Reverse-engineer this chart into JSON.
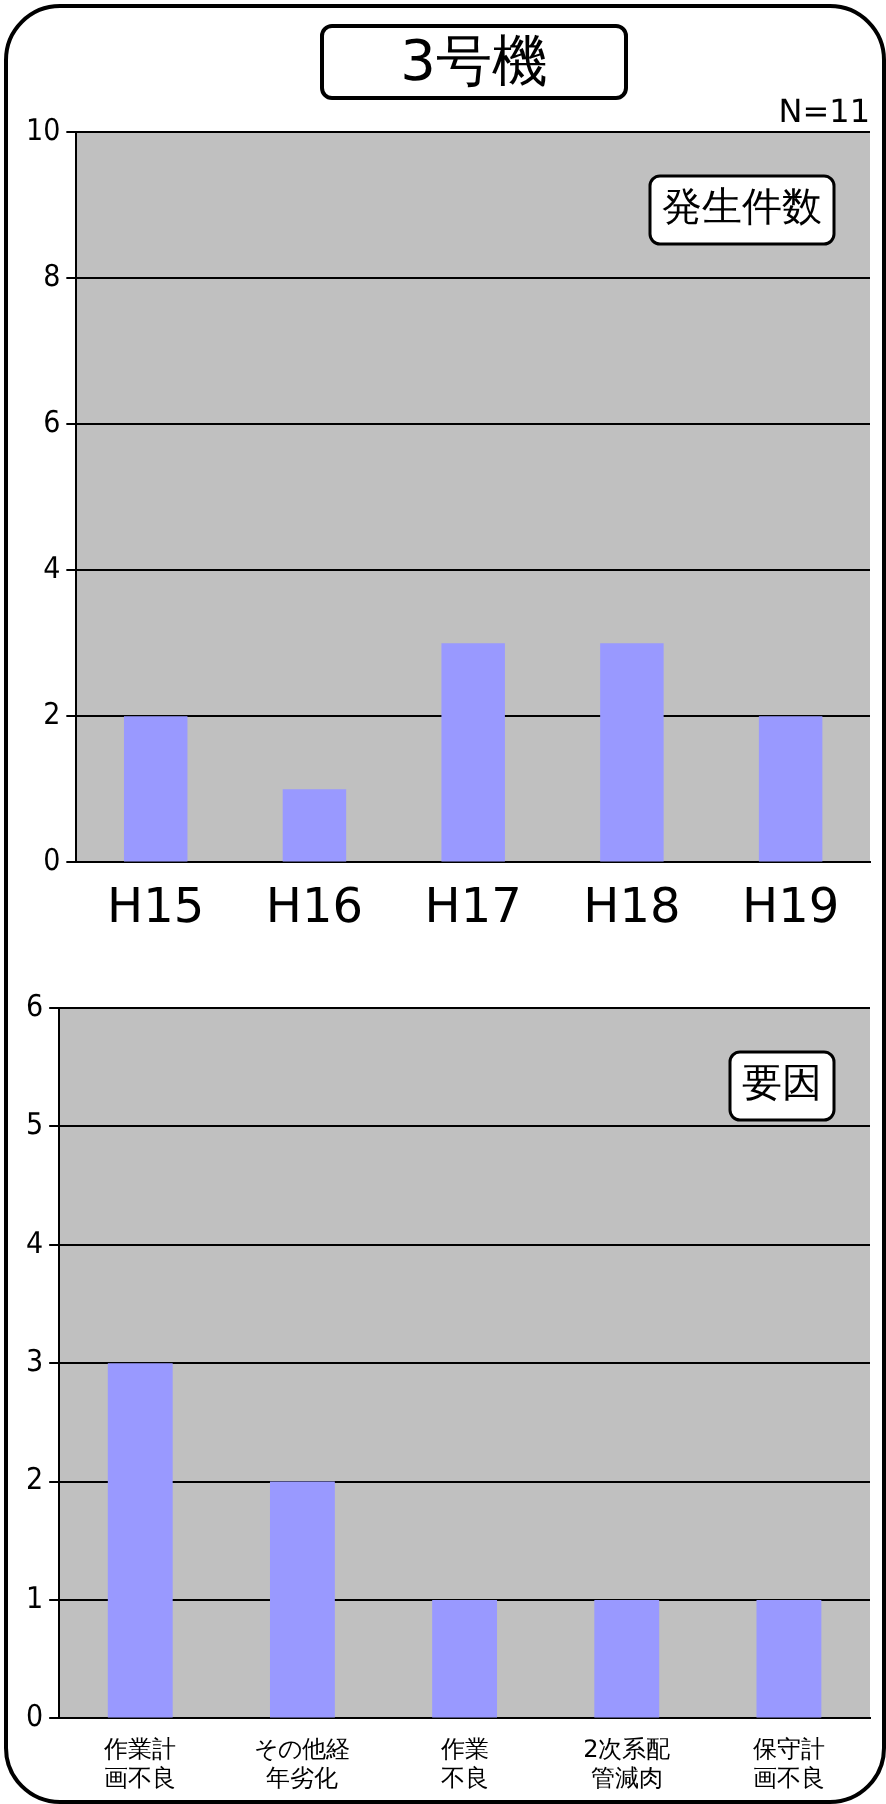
{
  "chart_data": [
    {
      "type": "bar",
      "title": "3号機",
      "categories": [
        "H15",
        "H16",
        "H17",
        "H18",
        "H19"
      ],
      "values": [
        2,
        1,
        3,
        3,
        2
      ],
      "color": "#9999ff",
      "ylim": [
        0,
        10
      ],
      "yticks": [
        0,
        2,
        4,
        6,
        8,
        10
      ],
      "grid": "y",
      "legend": false,
      "annotations": [
        "N=11",
        "発生件数"
      ]
    },
    {
      "type": "bar",
      "categories": [
        "作業計画不良",
        "その他経年劣化",
        "作業不良",
        "2次系配管減肉",
        "保守計画不良"
      ],
      "values": [
        3,
        2,
        1,
        1,
        1
      ],
      "color": "#9999ff",
      "ylim": [
        0,
        6
      ],
      "yticks": [
        0,
        1,
        2,
        3,
        4,
        5,
        6
      ],
      "grid": "y",
      "legend": false,
      "annotations": [
        "要因"
      ]
    }
  ]
}
